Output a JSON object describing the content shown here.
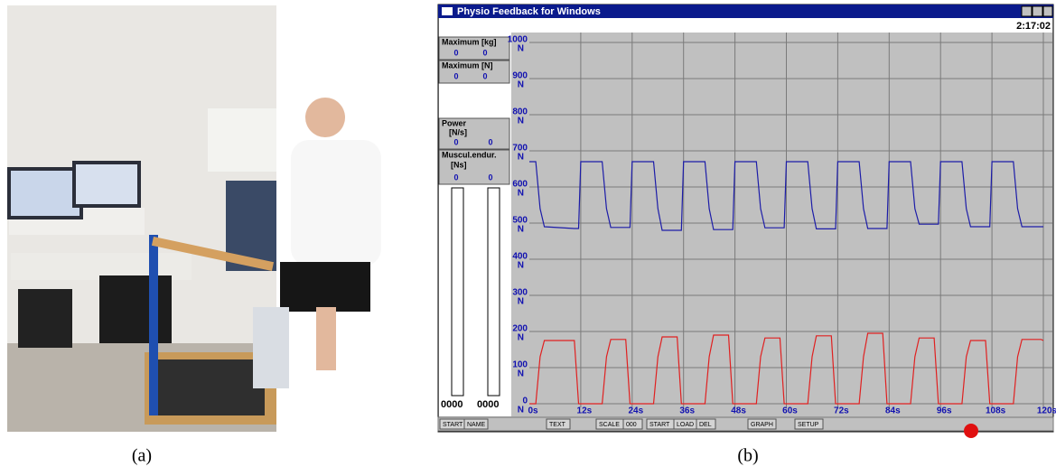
{
  "figure": {
    "label_a": "(a)",
    "label_b": "(b)"
  },
  "window": {
    "title": "Physio Feedback for Windows",
    "clock": "2:17:02",
    "sidebar": {
      "max_kg": "Maximum [kg]",
      "max_kg_values": [
        "0",
        "0"
      ],
      "max_n": "Maximum [N]",
      "max_n_values": [
        "0",
        "0"
      ],
      "power": "Power",
      "power_unit": "[N/s]",
      "power_values": [
        "0",
        "0"
      ],
      "endurance": "Muscul.endur.",
      "endurance_unit": "[Ns]",
      "endurance_values": [
        "0",
        "0"
      ],
      "counters": [
        "0000",
        "0000"
      ]
    },
    "toolbar": [
      "START",
      "NAME",
      "TEXT",
      "SCALE",
      "000",
      "START",
      "LOAD",
      "DEL",
      "GRAPH",
      "SETUP"
    ]
  },
  "chart_data": {
    "type": "line",
    "y_unit": "N",
    "grid": true,
    "xlim": [
      0,
      120
    ],
    "ylim": [
      0,
      1000
    ],
    "yticks": [
      0,
      100,
      200,
      300,
      400,
      500,
      600,
      700,
      800,
      900,
      1000
    ],
    "xticks": [
      {
        "value": 0,
        "label": "0s"
      },
      {
        "value": 12,
        "label": "12s"
      },
      {
        "value": 24,
        "label": "24s"
      },
      {
        "value": 36,
        "label": "36s"
      },
      {
        "value": 48,
        "label": "48s"
      },
      {
        "value": 60,
        "label": "60s"
      },
      {
        "value": 72,
        "label": "72s"
      },
      {
        "value": 84,
        "label": "84s"
      },
      {
        "value": 96,
        "label": "96s"
      },
      {
        "value": 108,
        "label": "108s"
      },
      {
        "value": 120,
        "label": "120s"
      }
    ],
    "x": [
      0,
      1.5,
      2.5,
      3.5,
      10.5,
      11.5,
      12,
      17,
      18,
      19,
      22.5,
      23.5,
      24,
      29,
      30,
      31,
      34.5,
      35.5,
      36,
      41,
      42,
      43,
      46.5,
      47.5,
      48,
      53,
      54,
      55,
      58.5,
      59.5,
      60,
      65,
      66,
      67,
      70.5,
      71.5,
      72,
      77,
      78,
      79,
      82.5,
      83.5,
      84,
      89,
      90,
      91,
      94.5,
      95.5,
      96,
      101,
      102,
      103,
      106.5,
      107.5,
      108,
      113,
      114,
      115,
      118.5,
      119.5,
      120
    ],
    "series": [
      {
        "color": "#1c1ca8",
        "values": [
          670,
          670,
          540,
          490,
          485,
          485,
          670,
          670,
          540,
          488,
          488,
          488,
          670,
          670,
          540,
          480,
          480,
          480,
          670,
          670,
          540,
          482,
          482,
          482,
          670,
          670,
          540,
          487,
          487,
          487,
          670,
          670,
          540,
          484,
          484,
          484,
          670,
          670,
          540,
          485,
          485,
          485,
          670,
          670,
          540,
          497,
          497,
          497,
          670,
          670,
          540,
          490,
          490,
          490,
          670,
          670,
          540,
          490,
          490,
          490,
          490
        ]
      },
      {
        "color": "#e02020",
        "values": [
          0,
          0,
          130,
          175,
          175,
          0,
          0,
          0,
          130,
          178,
          178,
          0,
          0,
          0,
          130,
          185,
          185,
          0,
          0,
          0,
          130,
          190,
          190,
          0,
          0,
          0,
          130,
          182,
          182,
          0,
          0,
          0,
          130,
          188,
          188,
          0,
          0,
          0,
          130,
          195,
          195,
          0,
          0,
          0,
          130,
          182,
          182,
          0,
          0,
          0,
          130,
          175,
          175,
          0,
          0,
          0,
          130,
          178,
          178,
          178,
          175
        ]
      }
    ]
  }
}
